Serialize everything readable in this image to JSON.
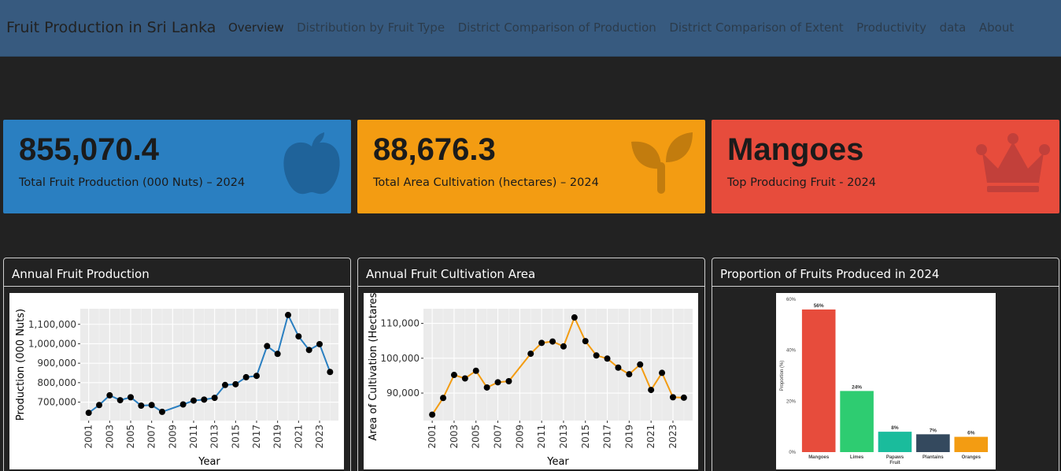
{
  "navbar": {
    "brand": "Fruit Production in Sri Lanka",
    "tabs": [
      {
        "label": "Overview",
        "active": true
      },
      {
        "label": "Distribution by Fruit Type",
        "active": false
      },
      {
        "label": "District Comparison of Production",
        "active": false
      },
      {
        "label": "District Comparison of Extent",
        "active": false
      },
      {
        "label": "Productivity",
        "active": false
      },
      {
        "label": "data",
        "active": false
      },
      {
        "label": "About",
        "active": false
      }
    ]
  },
  "kpis": [
    {
      "value": "855,070.4",
      "label": "Total Fruit Production (000 Nuts) – 2024",
      "color": "#2a7fc1",
      "icon": "apple-icon"
    },
    {
      "value": "88,676.3",
      "label": "Total Area Cultivation (hectares) – 2024",
      "color": "#f39c12",
      "icon": "seedling-icon"
    },
    {
      "value": "Mangoes",
      "label": "Top Producing Fruit - 2024",
      "color": "#e74c3c",
      "icon": "crown-icon"
    }
  ],
  "cards": {
    "production": {
      "title": "Annual Fruit Production"
    },
    "area": {
      "title": "Annual Fruit Cultivation Area"
    },
    "proportion": {
      "title": "Proportion of Fruits Produced in 2024"
    }
  },
  "chart_data": [
    {
      "type": "line",
      "title": "",
      "xlabel": "Year",
      "ylabel": "Production (000 Nuts)",
      "x": [
        2001,
        2002,
        2003,
        2004,
        2005,
        2006,
        2007,
        2008,
        2010,
        2011,
        2012,
        2013,
        2014,
        2015,
        2016,
        2017,
        2018,
        2019,
        2020,
        2021,
        2022,
        2023,
        2024
      ],
      "values": [
        645000,
        685000,
        735000,
        710000,
        725000,
        682000,
        685000,
        650000,
        688000,
        708000,
        713000,
        722000,
        788000,
        792000,
        828000,
        835000,
        988000,
        948000,
        1148000,
        1038000,
        968000,
        998000,
        855070
      ],
      "xticks": [
        "2001",
        "2003",
        "2005",
        "2007",
        "2009",
        "2011",
        "2013",
        "2015",
        "2017",
        "2019",
        "2021",
        "2023"
      ],
      "yticks": [
        "700,000",
        "800,000",
        "900,000",
        "1,000,000",
        "1,100,000"
      ],
      "xlim": [
        2000.2,
        2024.8
      ],
      "ylim": [
        605000,
        1180000
      ],
      "color": "#2a7fc1",
      "grid": true
    },
    {
      "type": "line",
      "title": "",
      "xlabel": "Year",
      "ylabel": "Area of Cultivation (Hectares)",
      "x": [
        2001,
        2002,
        2003,
        2004,
        2005,
        2006,
        2007,
        2008,
        2010,
        2011,
        2012,
        2013,
        2014,
        2015,
        2016,
        2017,
        2018,
        2019,
        2020,
        2021,
        2022,
        2023,
        2024
      ],
      "values": [
        83800,
        88600,
        95200,
        94200,
        96400,
        91600,
        93100,
        93400,
        101300,
        104400,
        104800,
        103400,
        111700,
        104900,
        100800,
        99900,
        97300,
        95400,
        98200,
        90900,
        95800,
        88800,
        88676
      ],
      "xticks": [
        "2001",
        "2003",
        "2005",
        "2007",
        "2009",
        "2011",
        "2013",
        "2015",
        "2017",
        "2019",
        "2021",
        "2023"
      ],
      "yticks": [
        "90,000",
        "100,000",
        "110,000"
      ],
      "xlim": [
        2000.2,
        2024.8
      ],
      "ylim": [
        82100,
        114200
      ],
      "color": "#f39c12",
      "grid": true
    },
    {
      "type": "bar",
      "title": "",
      "xlabel": "",
      "ylabel": "Proportion (%)",
      "categories": [
        "Mangoes",
        "Limes",
        "Papaws Fruit",
        "Plantains",
        "Oranges"
      ],
      "values": [
        56,
        24,
        8,
        7,
        6
      ],
      "data_labels": [
        "56%",
        "24%",
        "8%",
        "7%",
        "6%"
      ],
      "colors": [
        "#e74c3c",
        "#2ecc71",
        "#1abc9c",
        "#34495e",
        "#f39c12"
      ],
      "yticks": [
        "0%",
        "20%",
        "40%",
        "60%"
      ],
      "ylim": [
        0,
        60
      ]
    }
  ]
}
